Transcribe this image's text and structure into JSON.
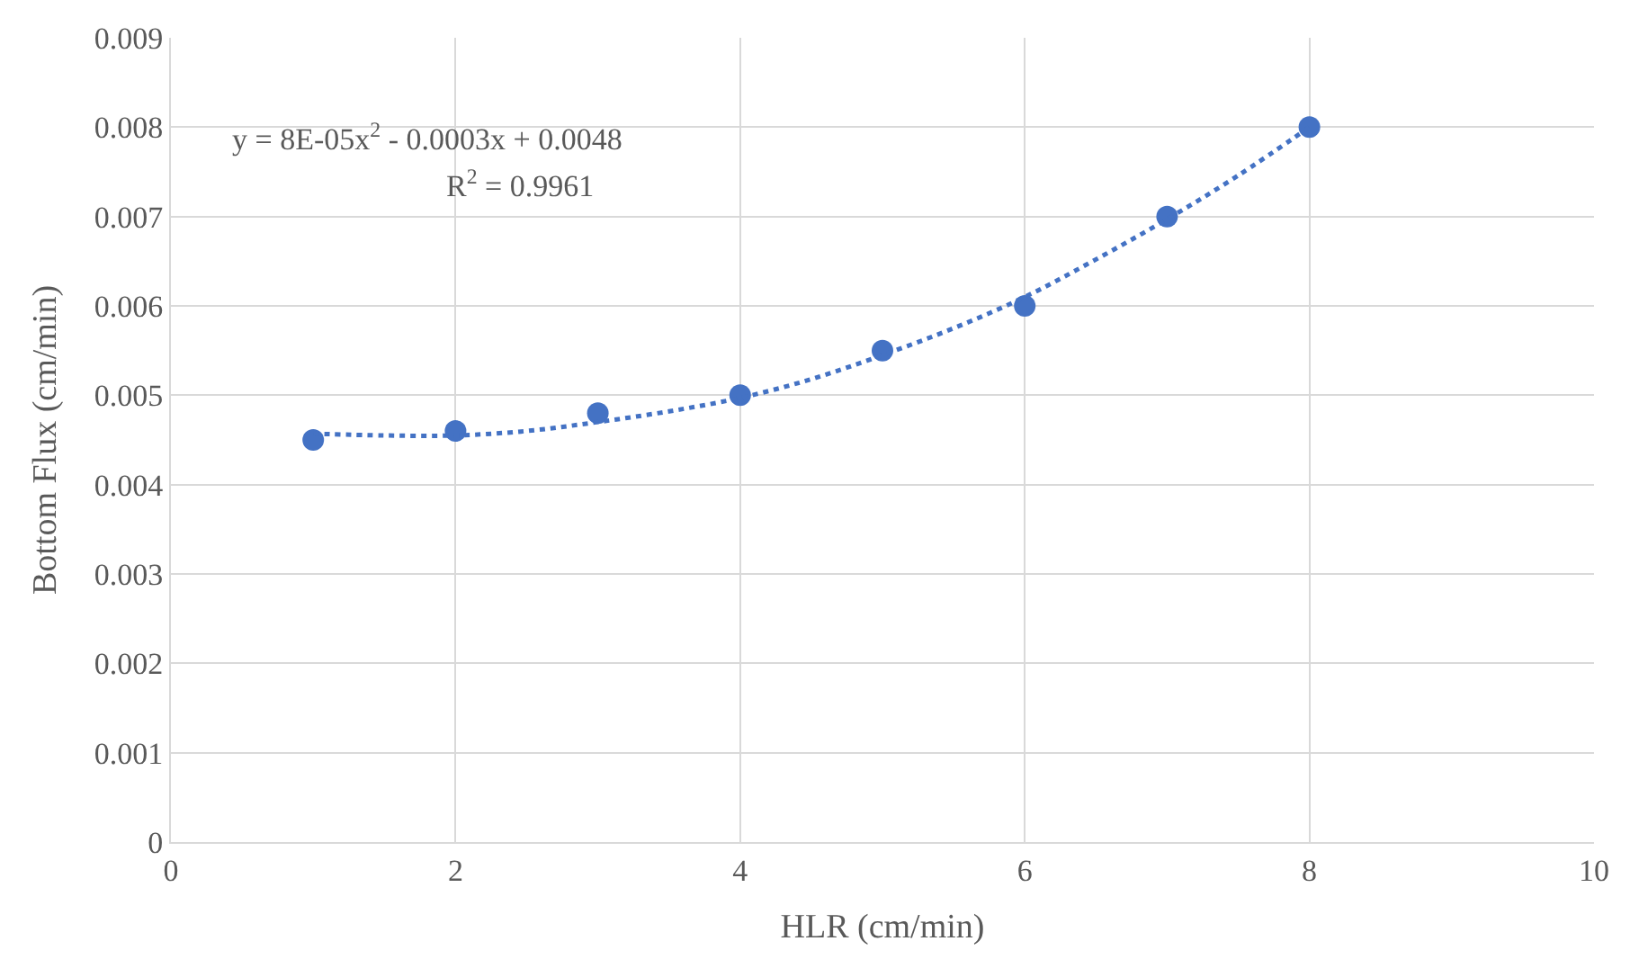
{
  "chart_data": {
    "type": "scatter",
    "xlabel": "HLR (cm/min)",
    "ylabel": "Bottom Flux (cm/min)",
    "annotations": [
      "y = 8E-05x$^{2}$ - 0.0003x + 0.0048",
      "R$^{2}$ = 0.9961"
    ],
    "xlim": [
      0,
      10
    ],
    "xticks": [
      0,
      2,
      4,
      6,
      8,
      10
    ],
    "ylim": [
      0,
      0.009
    ],
    "yticks": [
      0,
      0.001,
      0.002,
      0.003,
      0.004,
      0.005,
      0.006,
      0.007,
      0.008,
      0.009
    ],
    "grid": true,
    "legend": false,
    "series": [
      {
        "color": "#4472c4",
        "marker": "circle",
        "x": [
          1,
          2,
          3,
          4,
          5,
          6,
          7,
          8
        ],
        "values": [
          0.0045,
          0.0046,
          0.0048,
          0.005,
          0.0055,
          0.006,
          0.007,
          0.008
        ]
      },
      {
        "type": "line",
        "color": "#4472c4",
        "line_style": "dotted",
        "marker": "none",
        "x": [
          1,
          1.5,
          2,
          2.5,
          3,
          3.5,
          4,
          4.5,
          5,
          5.5,
          6,
          6.5,
          7,
          7.5,
          8
        ],
        "values": [
          0.00457,
          0.00455,
          0.00455,
          0.0046,
          0.0047,
          0.00482,
          0.00497,
          0.00518,
          0.00545,
          0.00575,
          0.0061,
          0.00652,
          0.00697,
          0.00746,
          0.008
        ]
      }
    ]
  }
}
